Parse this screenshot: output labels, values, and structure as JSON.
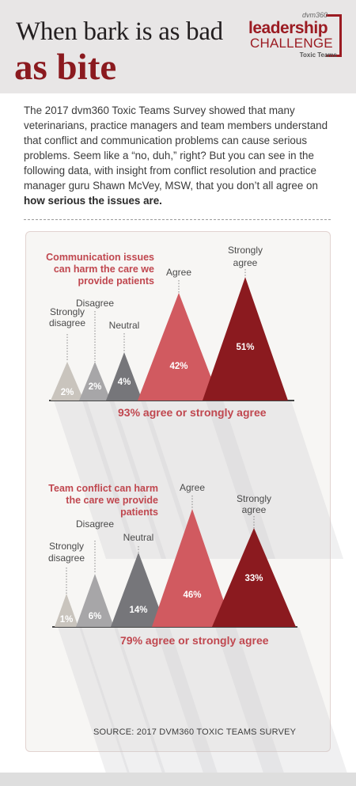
{
  "header": {
    "title_line1": "When bark is as bad",
    "title_line2": "as bite",
    "logo": {
      "brand": "dvm360",
      "word1": "leadership",
      "word2": "CHALLENGE",
      "sub": "Toxic Teams"
    }
  },
  "intro": {
    "text": "The 2017 dvm360 Toxic Teams Survey showed that many veterinarians, practice managers and team members understand that conflict and communication problems can cause serious problems. Seem like a “no, duh,” right? But you can see in the following data, with insight from conflict resolution and practice manager guru Shawn McVey, MSW, that you don’t all agree on ",
    "bold": "how serious the issues are."
  },
  "colors": {
    "strongly_disagree": "#c9c4bd",
    "disagree": "#a7a6a8",
    "neutral": "#76767a",
    "agree": "#d15a60",
    "strongly_agree": "#8b1a1f",
    "accent": "#c0474f"
  },
  "chart_data": [
    {
      "type": "bar",
      "title": "Communication issues can harm the care we provide patients",
      "categories": [
        "Strongly disagree",
        "Disagree",
        "Neutral",
        "Agree",
        "Strongly agree"
      ],
      "values": [
        2,
        2,
        4,
        42,
        51
      ],
      "value_labels": [
        "2%",
        "2%",
        "4%",
        "42%",
        "51%"
      ],
      "summary": "93% agree or strongly agree"
    },
    {
      "type": "bar",
      "title": "Team conflict can harm the care we provide patients",
      "categories": [
        "Strongly disagree",
        "Disagree",
        "Neutral",
        "Agree",
        "Strongly agree"
      ],
      "values": [
        1,
        6,
        14,
        46,
        33
      ],
      "value_labels": [
        "1%",
        "6%",
        "14%",
        "46%",
        "33%"
      ],
      "summary": "79% agree or strongly agree"
    }
  ],
  "source": "SOURCE: 2017 DVM360 TOXIC TEAMS SURVEY"
}
